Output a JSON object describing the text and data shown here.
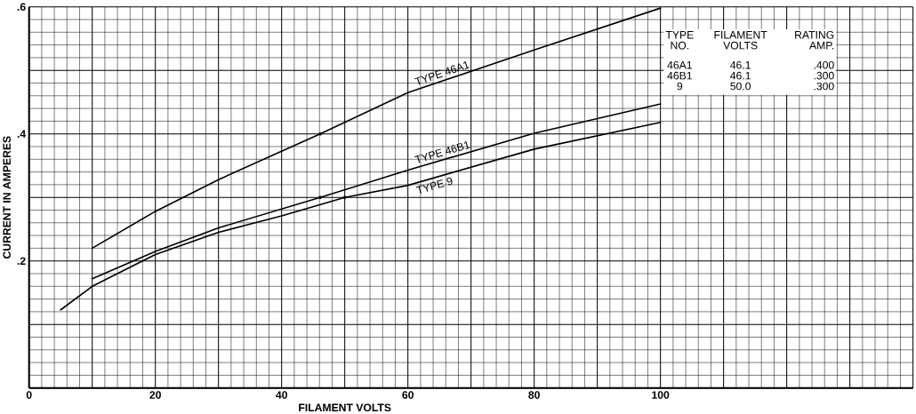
{
  "chart_data": {
    "type": "line",
    "xlabel": "FILAMENT VOLTS",
    "ylabel": "CURRENT IN AMPERES",
    "xlim": [
      0,
      140
    ],
    "ylim": [
      0,
      0.6
    ],
    "xticks": [
      {
        "value": 0,
        "label": "0"
      },
      {
        "value": 10,
        "label": null
      },
      20,
      {
        "value": 30,
        "label": null
      },
      40,
      {
        "value": 50,
        "label": null
      },
      60,
      {
        "value": 70,
        "label": null
      },
      80,
      {
        "value": 90,
        "label": null
      },
      100,
      {
        "value": 110,
        "label": null
      },
      {
        "value": 120,
        "label": null
      },
      {
        "value": 130,
        "label": null
      },
      {
        "value": 140,
        "label": null
      }
    ],
    "yticks": [
      {
        "value": 0,
        "label": null
      },
      {
        "value": 0.1,
        "label": null
      },
      {
        "value": 0.2,
        "label": ".2"
      },
      {
        "value": 0.3,
        "label": null
      },
      {
        "value": 0.4,
        "label": ".4"
      },
      {
        "value": 0.5,
        "label": null
      },
      {
        "value": 0.6,
        "label": ".6"
      }
    ],
    "grid": true,
    "legend": false,
    "line_style": "solid",
    "series": [
      {
        "name": "TYPE 46A1",
        "color": "#000000",
        "marker": "none",
        "x": [
          10,
          20,
          30,
          46.1,
          60,
          80,
          100
        ],
        "values": [
          0.22,
          0.278,
          0.328,
          0.4,
          0.465,
          0.532,
          0.598
        ]
      },
      {
        "name": "TYPE 46B1",
        "color": "#000000",
        "marker": "none",
        "x": [
          10,
          20,
          30,
          46.1,
          60,
          80,
          100
        ],
        "values": [
          0.172,
          0.215,
          0.252,
          0.3,
          0.343,
          0.401,
          0.447
        ]
      },
      {
        "name": "TYPE 9",
        "color": "#000000",
        "marker": "none",
        "x": [
          5,
          10,
          20,
          30,
          40,
          50,
          60,
          80,
          100
        ],
        "values": [
          0.123,
          0.16,
          0.21,
          0.245,
          0.271,
          0.3,
          0.319,
          0.376,
          0.418
        ]
      },
      {
        "type": "scatter",
        "color": "#000000",
        "marker": "circle",
        "x": [
          46.1,
          46.1,
          50
        ],
        "values": [
          0.4,
          0.3,
          0.3
        ]
      }
    ],
    "annotations": [
      "TYPE",
      "FILAMENT",
      "RATING",
      "NO.",
      "VOLTS",
      "AMP.",
      "46A1",
      "46.1",
      ".400",
      "46B1",
      "46.1",
      ".300",
      "9",
      "50.0",
      ".300"
    ]
  }
}
